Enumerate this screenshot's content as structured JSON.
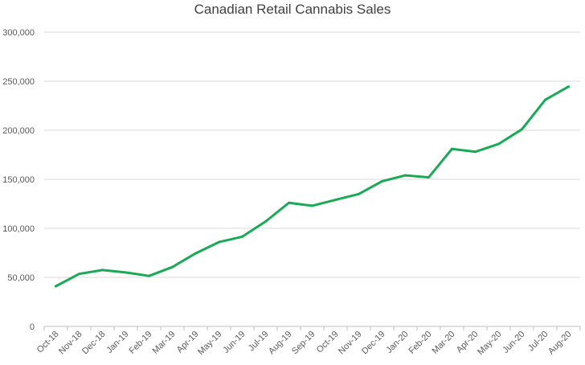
{
  "chart_data": {
    "type": "line",
    "title": "Canadian Retail Cannabis Sales",
    "xlabel": "",
    "ylabel": "",
    "categories": [
      "Oct-18",
      "Nov-18",
      "Dec-18",
      "Jan-19",
      "Feb-19",
      "Mar-19",
      "Apr-19",
      "May-19",
      "Jun-19",
      "Jul-19",
      "Aug-19",
      "Sep-19",
      "Oct-19",
      "Nov-19",
      "Dec-19",
      "Jan-20",
      "Feb-20",
      "Mar-20",
      "Apr-20",
      "May-20",
      "Jun-20",
      "Jul-20",
      "Aug-20"
    ],
    "series": [
      {
        "name": "",
        "color": "#1aaa55",
        "values": [
          41000,
          53500,
          57500,
          55000,
          51500,
          60500,
          74500,
          86000,
          91500,
          107000,
          126000,
          123000,
          129000,
          135000,
          148000,
          154000,
          152000,
          181000,
          178000,
          186000,
          201000,
          231000,
          244500
        ]
      }
    ],
    "ylim": [
      0,
      300000
    ],
    "yticks": [
      0,
      50000,
      100000,
      150000,
      200000,
      250000,
      300000
    ],
    "ytick_labels": [
      "0",
      "50,000",
      "100,000",
      "150,000",
      "200,000",
      "250,000",
      "300,000"
    ],
    "grid": true,
    "legend": "none",
    "gridline_color": "#d9d9d9",
    "axis_color": "#bfbfbf",
    "text_color": "#595959"
  }
}
